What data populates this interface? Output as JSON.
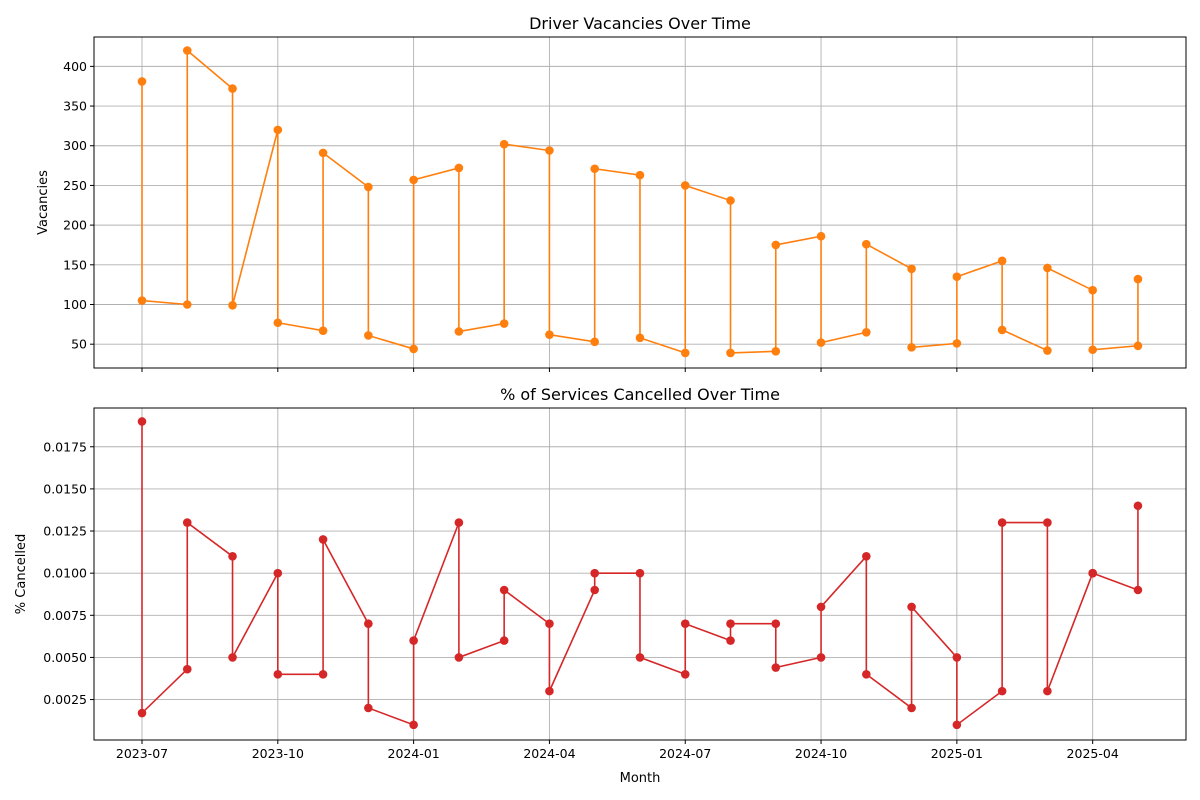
{
  "chart_data": [
    {
      "type": "line",
      "title": "Driver Vacancies Over Time",
      "xlabel": "",
      "ylabel": "Vacancies",
      "color": "#ff7f0e",
      "grid": true,
      "x_ticks": [
        "2023-07",
        "2023-10",
        "2024-01",
        "2024-04",
        "2024-07",
        "2024-10",
        "2025-01",
        "2025-04"
      ],
      "ylim": [
        20,
        437
      ],
      "y_ticks": [
        50,
        100,
        150,
        200,
        250,
        300,
        350,
        400
      ],
      "points": [
        {
          "x": "2023-07",
          "y": 381
        },
        {
          "x": "2023-07",
          "y": 105
        },
        {
          "x": "2023-08",
          "y": 100
        },
        {
          "x": "2023-08",
          "y": 420
        },
        {
          "x": "2023-09",
          "y": 372
        },
        {
          "x": "2023-09",
          "y": 99
        },
        {
          "x": "2023-10",
          "y": 320
        },
        {
          "x": "2023-10",
          "y": 77
        },
        {
          "x": "2023-11",
          "y": 67
        },
        {
          "x": "2023-11",
          "y": 291
        },
        {
          "x": "2023-12",
          "y": 248
        },
        {
          "x": "2023-12",
          "y": 61
        },
        {
          "x": "2024-01",
          "y": 44
        },
        {
          "x": "2024-01",
          "y": 257
        },
        {
          "x": "2024-02",
          "y": 272
        },
        {
          "x": "2024-02",
          "y": 66
        },
        {
          "x": "2024-03",
          "y": 76
        },
        {
          "x": "2024-03",
          "y": 302
        },
        {
          "x": "2024-04",
          "y": 294
        },
        {
          "x": "2024-04",
          "y": 62
        },
        {
          "x": "2024-05",
          "y": 53
        },
        {
          "x": "2024-05",
          "y": 271
        },
        {
          "x": "2024-06",
          "y": 263
        },
        {
          "x": "2024-06",
          "y": 58
        },
        {
          "x": "2024-07",
          "y": 39
        },
        {
          "x": "2024-07",
          "y": 250
        },
        {
          "x": "2024-08",
          "y": 231
        },
        {
          "x": "2024-08",
          "y": 39
        },
        {
          "x": "2024-09",
          "y": 41
        },
        {
          "x": "2024-09",
          "y": 175
        },
        {
          "x": "2024-10",
          "y": 186
        },
        {
          "x": "2024-10",
          "y": 52
        },
        {
          "x": "2024-11",
          "y": 65
        },
        {
          "x": "2024-11",
          "y": 176
        },
        {
          "x": "2024-12",
          "y": 145
        },
        {
          "x": "2024-12",
          "y": 46
        },
        {
          "x": "2025-01",
          "y": 51
        },
        {
          "x": "2025-01",
          "y": 135
        },
        {
          "x": "2025-02",
          "y": 155
        },
        {
          "x": "2025-02",
          "y": 68
        },
        {
          "x": "2025-03",
          "y": 42
        },
        {
          "x": "2025-03",
          "y": 146
        },
        {
          "x": "2025-04",
          "y": 118
        },
        {
          "x": "2025-04",
          "y": 43
        },
        {
          "x": "2025-05",
          "y": 48
        },
        {
          "x": "2025-05",
          "y": 132
        }
      ]
    },
    {
      "type": "line",
      "title": "% of Services Cancelled Over Time",
      "xlabel": "Month",
      "ylabel": "% Cancelled",
      "color": "#d62728",
      "grid": true,
      "x_ticks": [
        "2023-07",
        "2023-10",
        "2024-01",
        "2024-04",
        "2024-07",
        "2024-10",
        "2025-01",
        "2025-04"
      ],
      "ylim": [
        0.0001,
        0.0198
      ],
      "y_ticks": [
        "0.0025",
        "0.0050",
        "0.0075",
        "0.0100",
        "0.0125",
        "0.0150",
        "0.0175"
      ],
      "points": [
        {
          "x": "2023-07",
          "y": 0.019
        },
        {
          "x": "2023-07",
          "y": 0.0017
        },
        {
          "x": "2023-08",
          "y": 0.0043
        },
        {
          "x": "2023-08",
          "y": 0.013
        },
        {
          "x": "2023-09",
          "y": 0.011
        },
        {
          "x": "2023-09",
          "y": 0.005
        },
        {
          "x": "2023-10",
          "y": 0.01
        },
        {
          "x": "2023-10",
          "y": 0.004
        },
        {
          "x": "2023-11",
          "y": 0.004
        },
        {
          "x": "2023-11",
          "y": 0.012
        },
        {
          "x": "2023-12",
          "y": 0.007
        },
        {
          "x": "2023-12",
          "y": 0.002
        },
        {
          "x": "2024-01",
          "y": 0.001
        },
        {
          "x": "2024-01",
          "y": 0.006
        },
        {
          "x": "2024-02",
          "y": 0.013
        },
        {
          "x": "2024-02",
          "y": 0.005
        },
        {
          "x": "2024-03",
          "y": 0.006
        },
        {
          "x": "2024-03",
          "y": 0.009
        },
        {
          "x": "2024-04",
          "y": 0.007
        },
        {
          "x": "2024-04",
          "y": 0.003
        },
        {
          "x": "2024-05",
          "y": 0.009
        },
        {
          "x": "2024-05",
          "y": 0.01
        },
        {
          "x": "2024-06",
          "y": 0.01
        },
        {
          "x": "2024-06",
          "y": 0.005
        },
        {
          "x": "2024-07",
          "y": 0.004
        },
        {
          "x": "2024-07",
          "y": 0.007
        },
        {
          "x": "2024-08",
          "y": 0.006
        },
        {
          "x": "2024-08",
          "y": 0.007
        },
        {
          "x": "2024-09",
          "y": 0.007
        },
        {
          "x": "2024-09",
          "y": 0.0044
        },
        {
          "x": "2024-10",
          "y": 0.005
        },
        {
          "x": "2024-10",
          "y": 0.008
        },
        {
          "x": "2024-11",
          "y": 0.011
        },
        {
          "x": "2024-11",
          "y": 0.004
        },
        {
          "x": "2024-12",
          "y": 0.002
        },
        {
          "x": "2024-12",
          "y": 0.008
        },
        {
          "x": "2025-01",
          "y": 0.005
        },
        {
          "x": "2025-01",
          "y": 0.001
        },
        {
          "x": "2025-02",
          "y": 0.003
        },
        {
          "x": "2025-02",
          "y": 0.013
        },
        {
          "x": "2025-03",
          "y": 0.013
        },
        {
          "x": "2025-03",
          "y": 0.003
        },
        {
          "x": "2025-04",
          "y": 0.01
        },
        {
          "x": "2025-04",
          "y": 0.01
        },
        {
          "x": "2025-05",
          "y": 0.009
        },
        {
          "x": "2025-05",
          "y": 0.014
        }
      ]
    }
  ]
}
